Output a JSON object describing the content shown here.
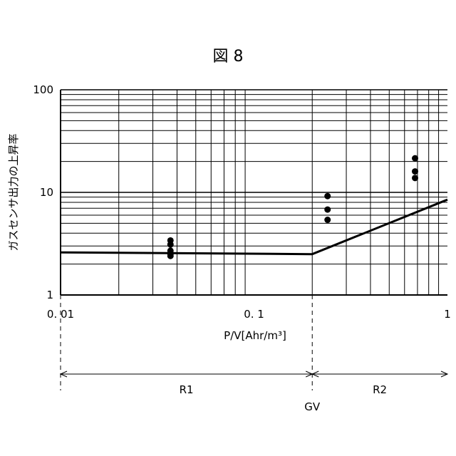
{
  "figure_title": "図 8",
  "chart_data": {
    "type": "scatter",
    "title": "図 8",
    "xlabel": "P/V[Ahr/m³]",
    "ylabel": "ガスセンサ出力の上昇率",
    "xscale": "log",
    "yscale": "log",
    "xlim": [
      0.01,
      1
    ],
    "ylim": [
      1,
      100
    ],
    "x_ticks": [
      {
        "value": 0.01,
        "label": "0. 01"
      },
      {
        "value": 0.1,
        "label": "0. 1"
      },
      {
        "value": 1,
        "label": "1"
      }
    ],
    "y_ticks": [
      {
        "value": 1,
        "label": "1"
      },
      {
        "value": 10,
        "label": "10"
      },
      {
        "value": 100,
        "label": "100"
      }
    ],
    "grid": true,
    "points": [
      {
        "x": 0.037,
        "y": 3.4
      },
      {
        "x": 0.037,
        "y": 3.1
      },
      {
        "x": 0.037,
        "y": 2.7
      },
      {
        "x": 0.037,
        "y": 2.5
      },
      {
        "x": 0.037,
        "y": 2.4
      },
      {
        "x": 0.24,
        "y": 9.2
      },
      {
        "x": 0.24,
        "y": 6.8
      },
      {
        "x": 0.24,
        "y": 5.4
      },
      {
        "x": 0.68,
        "y": 21.5
      },
      {
        "x": 0.68,
        "y": 16
      },
      {
        "x": 0.68,
        "y": 13.8
      }
    ],
    "threshold_line": [
      {
        "x": 0.01,
        "y": 2.6
      },
      {
        "x": 0.2,
        "y": 2.5
      },
      {
        "x": 1,
        "y": 8.5
      }
    ],
    "boundary": {
      "x": 0.2,
      "label": "GV"
    },
    "regions": [
      {
        "label": "R1",
        "from": 0.01,
        "to": 0.2
      },
      {
        "label": "R2",
        "from": 0.2,
        "to": 1
      }
    ]
  }
}
